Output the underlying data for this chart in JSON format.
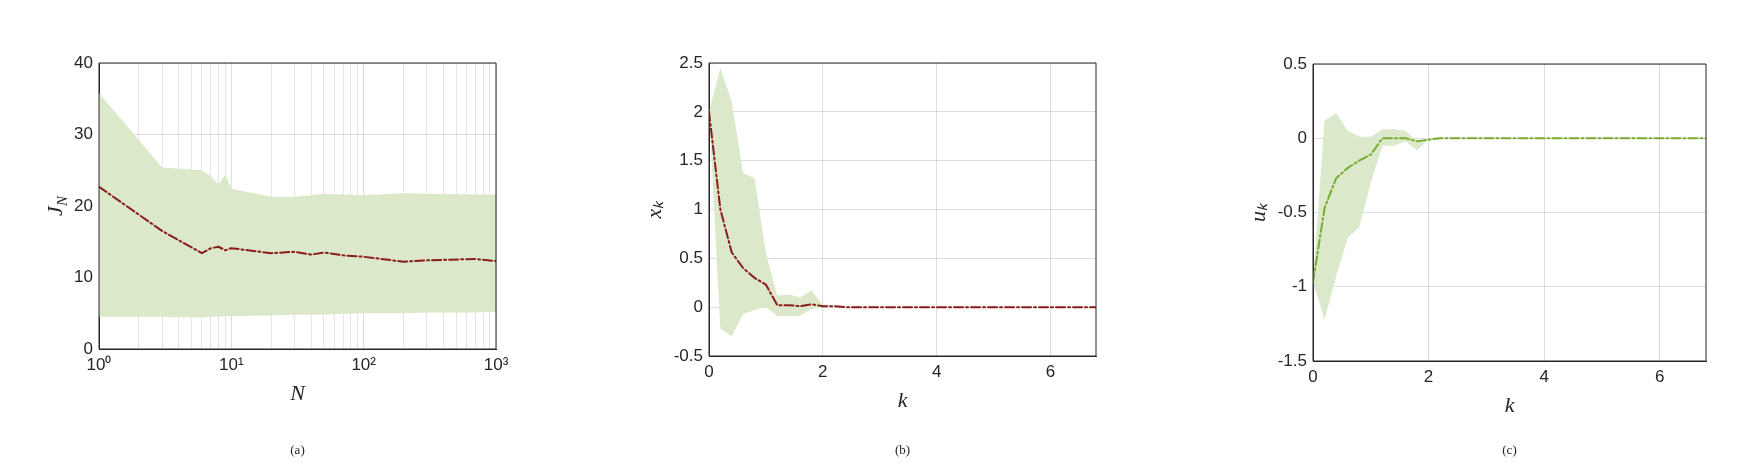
{
  "chart_data": [
    {
      "type": "line",
      "xlabel": "N",
      "ylabel": "J$_{N}$",
      "log": "x",
      "grid": true,
      "line_style": "dashdot",
      "marker": "none",
      "xlim": [
        1,
        1000
      ],
      "ylim": [
        0,
        40
      ],
      "yticks": [
        0,
        10,
        20,
        30,
        40
      ],
      "xticks": [
        {
          "value": 1,
          "label": "10⁰"
        },
        {
          "value": 2,
          "label": null
        },
        {
          "value": 3,
          "label": null
        },
        {
          "value": 4,
          "label": null
        },
        {
          "value": 5,
          "label": null
        },
        {
          "value": 6,
          "label": null
        },
        {
          "value": 7,
          "label": null
        },
        {
          "value": 8,
          "label": null
        },
        {
          "value": 9,
          "label": null
        },
        {
          "value": 10,
          "label": "10¹"
        },
        {
          "value": 20,
          "label": null
        },
        {
          "value": 30,
          "label": null
        },
        {
          "value": 40,
          "label": null
        },
        {
          "value": 50,
          "label": null
        },
        {
          "value": 60,
          "label": null
        },
        {
          "value": 70,
          "label": null
        },
        {
          "value": 80,
          "label": null
        },
        {
          "value": 90,
          "label": null
        },
        {
          "value": 100,
          "label": "10²"
        },
        {
          "value": 200,
          "label": null
        },
        {
          "value": 300,
          "label": null
        },
        {
          "value": 400,
          "label": null
        },
        {
          "value": 500,
          "label": null
        },
        {
          "value": 600,
          "label": null
        },
        {
          "value": 700,
          "label": null
        },
        {
          "value": 800,
          "label": null
        },
        {
          "value": 900,
          "label": null
        },
        {
          "value": 1000,
          "label": "10³"
        }
      ],
      "x": [
        1,
        3,
        6,
        7,
        8,
        9,
        10,
        20,
        30,
        40,
        50,
        70,
        100,
        200,
        300,
        700,
        1000
      ],
      "series": [
        {
          "color": "#8b1c1c",
          "values": [
            22.7,
            16.5,
            13.4,
            14.1,
            14.3,
            13.8,
            14.1,
            13.4,
            13.6,
            13.2,
            13.5,
            13.1,
            12.9,
            12.2,
            12.4,
            12.6,
            12.3
          ],
          "upper": [
            35.8,
            25.4,
            25.0,
            24.2,
            23.0,
            24.4,
            22.4,
            21.3,
            21.3,
            21.5,
            21.7,
            21.6,
            21.5,
            21.8,
            21.7,
            21.6,
            21.6
          ],
          "lower": [
            4.5,
            4.5,
            4.4,
            4.5,
            4.5,
            4.6,
            4.6,
            4.7,
            4.8,
            4.8,
            4.8,
            4.9,
            5.0,
            5.0,
            5.1,
            5.1,
            5.2
          ]
        }
      ],
      "annotations": [
        "(a)"
      ]
    },
    {
      "type": "line",
      "xlabel": "k",
      "ylabel": "xₖ",
      "grid": true,
      "line_style": "dashdot",
      "marker": "none",
      "xlim": [
        0,
        6.8
      ],
      "xticks": [
        0,
        2,
        4,
        6
      ],
      "ylim": [
        -0.5,
        2.5
      ],
      "yticks": [
        -0.5,
        0,
        0.5,
        1,
        1.5,
        2,
        2.5
      ],
      "x": [
        0,
        0.2,
        0.4,
        0.6,
        0.8,
        1.0,
        1.2,
        1.4,
        1.6,
        1.8,
        2.0,
        2.2,
        2.4,
        3,
        4,
        5,
        6,
        6.8
      ],
      "series": [
        {
          "color": "#8b1c1c",
          "values": [
            2.0,
            1.0,
            0.56,
            0.4,
            0.3,
            0.23,
            0.02,
            0.02,
            0.01,
            0.03,
            0.01,
            0.01,
            0,
            0,
            0,
            0,
            0,
            0
          ],
          "upper": [
            2.0,
            2.45,
            2.1,
            1.37,
            1.32,
            0.55,
            0.12,
            0.13,
            0.1,
            0.17,
            0.02,
            0.01,
            0,
            0,
            0,
            0,
            0,
            0
          ],
          "lower": [
            2.0,
            -0.22,
            -0.3,
            -0.07,
            -0.03,
            0,
            -0.09,
            -0.09,
            -0.09,
            -0.02,
            0,
            0.01,
            0,
            0,
            0,
            0,
            0,
            0
          ]
        }
      ],
      "annotations": [
        "(b)"
      ]
    },
    {
      "type": "line",
      "xlabel": "k",
      "ylabel": "uₖ",
      "grid": true,
      "line_style": "dashdot",
      "marker": "none",
      "xlim": [
        0,
        6.8
      ],
      "xticks": [
        0,
        2,
        4,
        6
      ],
      "ylim": [
        -1.5,
        0.5
      ],
      "yticks": [
        -1.5,
        -1,
        -0.5,
        0,
        0.5
      ],
      "x": [
        0,
        0.2,
        0.4,
        0.6,
        0.8,
        1.0,
        1.2,
        1.4,
        1.6,
        1.8,
        2.0,
        2.2,
        2.4,
        3,
        4,
        5,
        6,
        6.8
      ],
      "series": [
        {
          "color": "#77ac30",
          "values": [
            -0.97,
            -0.47,
            -0.27,
            -0.2,
            -0.15,
            -0.11,
            0,
            0,
            0,
            -0.02,
            -0.01,
            0,
            0,
            0,
            0,
            0,
            0,
            0
          ],
          "upper": [
            -0.97,
            0.12,
            0.17,
            0.05,
            0.01,
            0.01,
            0.06,
            0.06,
            0.05,
            -0.02,
            0,
            0,
            0,
            0,
            0,
            0,
            0,
            0
          ],
          "lower": [
            -0.97,
            -1.22,
            -0.93,
            -0.67,
            -0.6,
            -0.3,
            -0.05,
            -0.05,
            -0.02,
            -0.08,
            -0.01,
            0,
            0,
            0,
            0,
            0,
            0,
            0
          ]
        }
      ],
      "annotations": [
        "(c)"
      ]
    }
  ]
}
